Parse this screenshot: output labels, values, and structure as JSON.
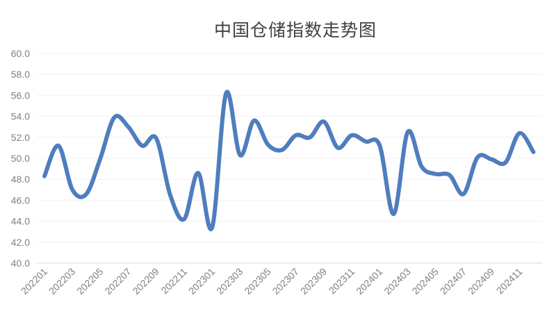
{
  "chart_data": {
    "type": "line",
    "title": "中国仓储指数走势图",
    "xlabel": "",
    "ylabel": "",
    "ylim": [
      40,
      60
    ],
    "yticks": [
      "40.0",
      "42.0",
      "44.0",
      "46.0",
      "48.0",
      "50.0",
      "52.0",
      "54.0",
      "56.0",
      "58.0",
      "60.0"
    ],
    "x": [
      "202201",
      "202202",
      "202203",
      "202204",
      "202205",
      "202206",
      "202207",
      "202208",
      "202209",
      "202210",
      "202211",
      "202212",
      "202301",
      "202302",
      "202303",
      "202304",
      "202305",
      "202306",
      "202307",
      "202308",
      "202309",
      "202310",
      "202311",
      "202312",
      "202401",
      "202402",
      "202403",
      "202404",
      "202405",
      "202406",
      "202407",
      "202408",
      "202409",
      "202410",
      "202411",
      "202412"
    ],
    "xtick_labels": [
      "202201",
      "202203",
      "202205",
      "202207",
      "202209",
      "202211",
      "202301",
      "202303",
      "202305",
      "202307",
      "202309",
      "202311",
      "202401",
      "202403",
      "202405",
      "202407",
      "202409",
      "202411"
    ],
    "series": [
      {
        "values": [
          48.3,
          51.2,
          47.0,
          46.6,
          50.0,
          53.9,
          53.0,
          51.2,
          51.9,
          46.5,
          44.2,
          48.6,
          43.4,
          56.2,
          50.3,
          53.6,
          51.3,
          50.8,
          52.2,
          52.0,
          53.5,
          51.0,
          52.2,
          51.6,
          51.2,
          44.7,
          52.5,
          49.2,
          48.5,
          48.4,
          46.6,
          50.1,
          49.9,
          49.6,
          52.4,
          50.6
        ],
        "color": "#4f7dbe"
      }
    ],
    "grid": true
  }
}
